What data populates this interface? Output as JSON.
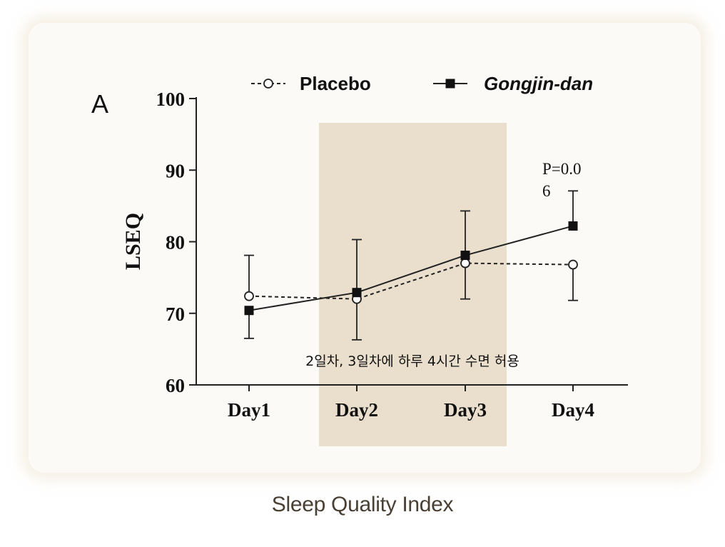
{
  "panel_label": "A",
  "caption": "Sleep Quality Index",
  "colors": {
    "shade": "#eadfcc",
    "line": "#222222",
    "caption": "#4a3f33",
    "card": "#fbfaf7"
  },
  "chart_data": {
    "type": "line",
    "categories": [
      "Day1",
      "Day2",
      "Day3",
      "Day4"
    ],
    "ylabel": "LSEQ",
    "xlabel": "",
    "ylim": [
      60,
      100
    ],
    "yticks": [
      60,
      70,
      80,
      90,
      100
    ],
    "legend_position": "top",
    "series": [
      {
        "name": "Placebo",
        "style": "dashed-open-circle",
        "values": [
          72.4,
          72.0,
          77.0,
          76.8
        ],
        "error_upper": [
          78.1,
          null,
          84.3,
          null
        ],
        "error_lower": [
          null,
          66.3,
          72.0,
          71.8
        ]
      },
      {
        "name": "Gongjin-dan",
        "style": "solid-filled-square",
        "values": [
          70.4,
          72.9,
          78.1,
          82.2
        ],
        "error_upper": [
          null,
          80.3,
          null,
          87.1
        ],
        "error_lower": [
          66.5,
          null,
          null,
          null
        ]
      }
    ],
    "shaded_region": {
      "from": "Day2",
      "to": "Day3",
      "label": "2일차, 3일차에 하루 4시간 수면 허용"
    },
    "annotations": [
      {
        "category": "Day4",
        "lines": [
          "P=0.0",
          "6"
        ]
      }
    ]
  }
}
